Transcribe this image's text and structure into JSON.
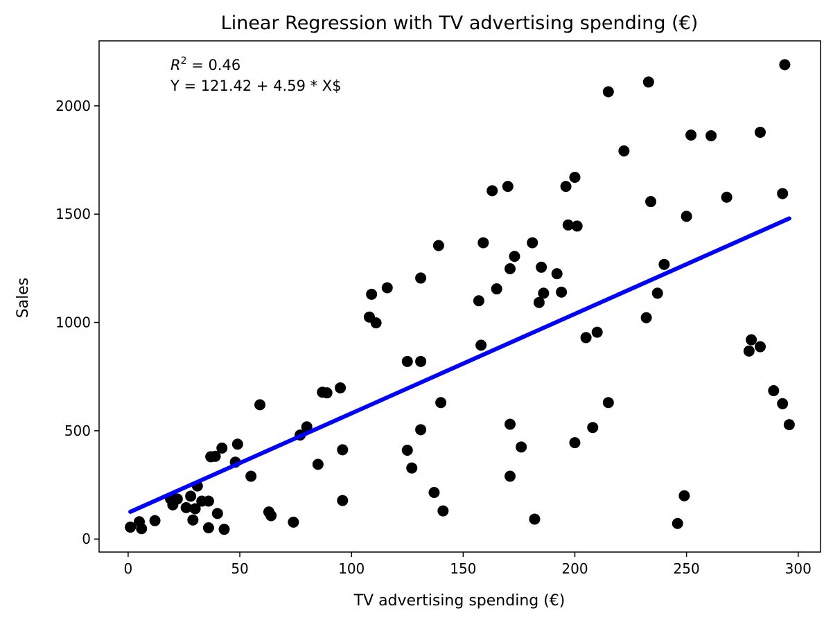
{
  "chart_data": {
    "type": "scatter",
    "title": "Linear Regression with TV advertising spending (€)",
    "xlabel": "TV advertising spending (€)",
    "ylabel": "Sales",
    "xlim": [
      -13,
      310
    ],
    "ylim": [
      -60,
      2300
    ],
    "xticks": [
      0,
      50,
      100,
      150,
      200,
      250,
      300
    ],
    "yticks": [
      0,
      500,
      1000,
      1500,
      2000
    ],
    "grid": false,
    "annotations": {
      "r2_symbol": "R",
      "r2_exponent": "2",
      "r2_value": " = 0.46",
      "equation": "Y = 121.42 + 4.59 * X$"
    },
    "regression": {
      "intercept": 121.42,
      "slope": 4.59,
      "x_range": [
        1,
        296
      ],
      "color": "#0000ff"
    },
    "point_color": "#000000",
    "points": [
      [
        1,
        55
      ],
      [
        5,
        80
      ],
      [
        6,
        48
      ],
      [
        12,
        85
      ],
      [
        19,
        185
      ],
      [
        20,
        158
      ],
      [
        22,
        185
      ],
      [
        26,
        145
      ],
      [
        28,
        198
      ],
      [
        29,
        88
      ],
      [
        30,
        140
      ],
      [
        31,
        245
      ],
      [
        33,
        175
      ],
      [
        36,
        52
      ],
      [
        36,
        175
      ],
      [
        37,
        380
      ],
      [
        39,
        382
      ],
      [
        40,
        118
      ],
      [
        42,
        420
      ],
      [
        43,
        45
      ],
      [
        48,
        355
      ],
      [
        49,
        438
      ],
      [
        55,
        290
      ],
      [
        59,
        620
      ],
      [
        63,
        125
      ],
      [
        64,
        108
      ],
      [
        74,
        78
      ],
      [
        77,
        480
      ],
      [
        80,
        518
      ],
      [
        85,
        345
      ],
      [
        87,
        678
      ],
      [
        89,
        675
      ],
      [
        95,
        698
      ],
      [
        96,
        412
      ],
      [
        96,
        178
      ],
      [
        108,
        1025
      ],
      [
        109,
        1130
      ],
      [
        111,
        998
      ],
      [
        116,
        1160
      ],
      [
        125,
        820
      ],
      [
        125,
        410
      ],
      [
        127,
        328
      ],
      [
        131,
        1205
      ],
      [
        131,
        820
      ],
      [
        131,
        505
      ],
      [
        137,
        215
      ],
      [
        139,
        1355
      ],
      [
        140,
        630
      ],
      [
        141,
        130
      ],
      [
        157,
        1100
      ],
      [
        158,
        895
      ],
      [
        159,
        1368
      ],
      [
        163,
        1608
      ],
      [
        165,
        1155
      ],
      [
        170,
        1628
      ],
      [
        171,
        1248
      ],
      [
        171,
        530
      ],
      [
        171,
        290
      ],
      [
        173,
        1305
      ],
      [
        176,
        425
      ],
      [
        181,
        1368
      ],
      [
        182,
        92
      ],
      [
        184,
        1092
      ],
      [
        185,
        1255
      ],
      [
        186,
        1135
      ],
      [
        192,
        1225
      ],
      [
        194,
        1140
      ],
      [
        196,
        1628
      ],
      [
        197,
        1450
      ],
      [
        200,
        1670
      ],
      [
        200,
        445
      ],
      [
        201,
        1445
      ],
      [
        205,
        930
      ],
      [
        208,
        515
      ],
      [
        210,
        955
      ],
      [
        215,
        2065
      ],
      [
        215,
        630
      ],
      [
        222,
        1792
      ],
      [
        232,
        1022
      ],
      [
        233,
        2110
      ],
      [
        234,
        1558
      ],
      [
        237,
        1135
      ],
      [
        240,
        1268
      ],
      [
        246,
        72
      ],
      [
        249,
        200
      ],
      [
        250,
        1490
      ],
      [
        252,
        1865
      ],
      [
        261,
        1862
      ],
      [
        268,
        1578
      ],
      [
        278,
        868
      ],
      [
        279,
        920
      ],
      [
        283,
        1878
      ],
      [
        283,
        888
      ],
      [
        289,
        685
      ],
      [
        293,
        1595
      ],
      [
        293,
        625
      ],
      [
        294,
        2190
      ],
      [
        296,
        528
      ]
    ]
  }
}
